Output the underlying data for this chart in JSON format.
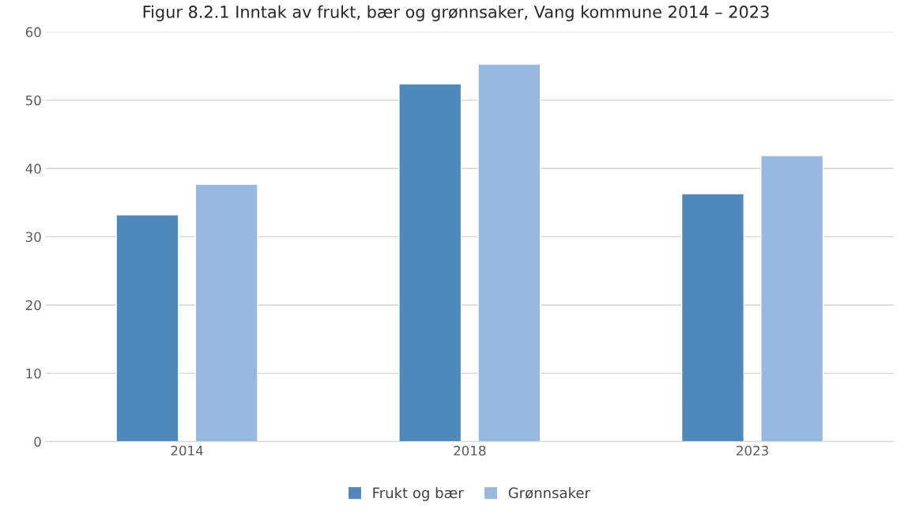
{
  "chart_data": {
    "type": "bar",
    "title": "Figur 8.2.1 Inntak av frukt, bær og grønnsaker, Vang kommune 2014 – 2023",
    "categories": [
      "2014",
      "2018",
      "2023"
    ],
    "series": [
      {
        "name": "Frukt og bær",
        "color": "#4f88bb",
        "values": [
          33.2,
          52.4,
          36.3
        ]
      },
      {
        "name": "Grønnsaker",
        "color": "#98b8df",
        "values": [
          37.7,
          55.3,
          41.9
        ]
      }
    ],
    "ylim": [
      0,
      60
    ],
    "yticks": [
      0,
      10,
      20,
      30,
      40,
      50,
      60
    ],
    "grid": "y",
    "legend": "bottom"
  }
}
